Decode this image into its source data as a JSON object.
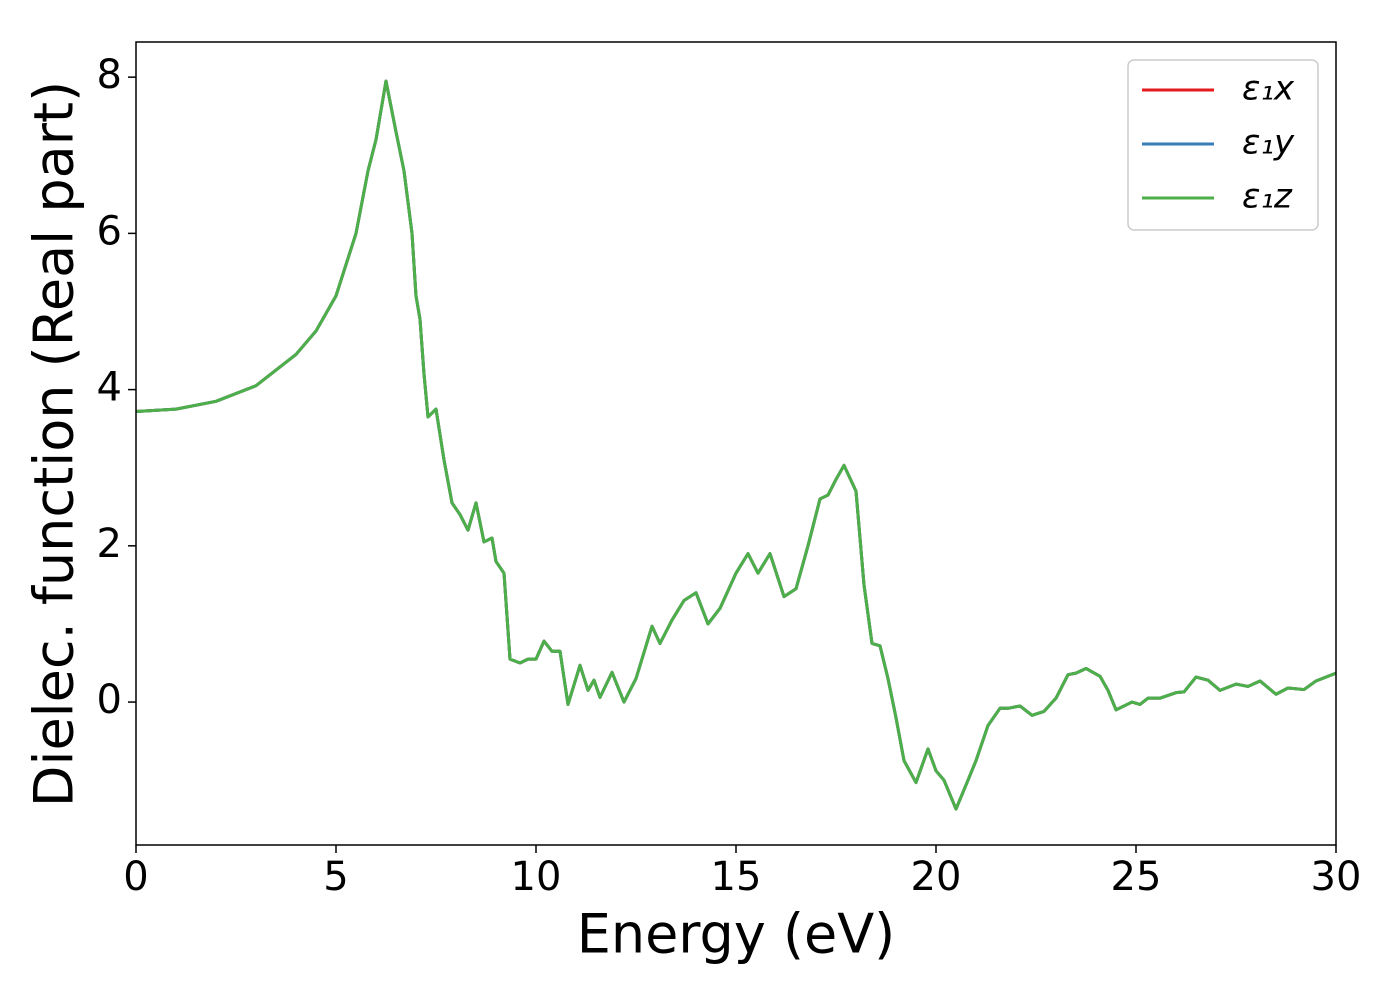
{
  "chart_data": {
    "type": "line",
    "xlabel": "Energy (eV)",
    "ylabel": "Dielec. function (Real part)",
    "x": [
      0,
      1,
      2,
      3,
      4,
      4.5,
      5,
      5.5,
      5.8,
      6.0,
      6.25,
      6.5,
      6.7,
      6.9,
      7.0,
      7.1,
      7.2,
      7.3,
      7.5,
      7.7,
      7.9,
      8.1,
      8.3,
      8.5,
      8.7,
      8.9,
      9.0,
      9.2,
      9.35,
      9.6,
      9.8,
      10.0,
      10.2,
      10.4,
      10.6,
      10.8,
      11.1,
      11.3,
      11.45,
      11.6,
      11.9,
      12.2,
      12.5,
      12.9,
      13.1,
      13.4,
      13.7,
      14.0,
      14.3,
      14.6,
      15.0,
      15.3,
      15.55,
      15.85,
      16.2,
      16.5,
      16.8,
      17.1,
      17.3,
      17.5,
      17.7,
      18.0,
      18.2,
      18.4,
      18.6,
      18.8,
      19.0,
      19.2,
      19.5,
      19.8,
      20.0,
      20.2,
      20.5,
      20.8,
      21.0,
      21.3,
      21.6,
      21.8,
      22.1,
      22.4,
      22.7,
      23.0,
      23.3,
      23.5,
      23.75,
      24.1,
      24.3,
      24.5,
      24.9,
      25.1,
      25.3,
      25.6,
      26.0,
      26.2,
      26.5,
      26.8,
      27.1,
      27.5,
      27.8,
      28.1,
      28.5,
      28.8,
      29.2,
      29.5,
      30.0
    ],
    "series": [
      {
        "name": "ε₁x",
        "color": "#e41a1c",
        "values": [
          3.72,
          3.75,
          3.85,
          4.05,
          4.45,
          4.75,
          5.2,
          6.0,
          6.8,
          7.2,
          7.95,
          7.3,
          6.8,
          6.0,
          5.2,
          4.9,
          4.2,
          3.65,
          3.75,
          3.1,
          2.55,
          2.4,
          2.2,
          2.55,
          2.05,
          2.1,
          1.8,
          1.65,
          0.55,
          0.5,
          0.55,
          0.55,
          0.78,
          0.65,
          0.65,
          -0.03,
          0.47,
          0.15,
          0.28,
          0.06,
          0.38,
          0.0,
          0.3,
          0.97,
          0.75,
          1.05,
          1.3,
          1.4,
          1.0,
          1.2,
          1.65,
          1.9,
          1.65,
          1.9,
          1.35,
          1.45,
          2.0,
          2.6,
          2.65,
          2.85,
          3.03,
          2.7,
          1.5,
          0.75,
          0.72,
          0.3,
          -0.2,
          -0.75,
          -1.03,
          -0.6,
          -0.88,
          -1.0,
          -1.37,
          -1.0,
          -0.75,
          -0.3,
          -0.08,
          -0.08,
          -0.05,
          -0.17,
          -0.12,
          0.05,
          0.35,
          0.37,
          0.43,
          0.33,
          0.15,
          -0.1,
          0.0,
          -0.03,
          0.05,
          0.05,
          0.12,
          0.13,
          0.32,
          0.28,
          0.15,
          0.23,
          0.2,
          0.27,
          0.1,
          0.18,
          0.16,
          0.27,
          0.37
        ]
      },
      {
        "name": "ε₁y",
        "color": "#377eb8",
        "values": [
          3.72,
          3.75,
          3.85,
          4.05,
          4.45,
          4.75,
          5.2,
          6.0,
          6.8,
          7.2,
          7.95,
          7.3,
          6.8,
          6.0,
          5.2,
          4.9,
          4.2,
          3.65,
          3.75,
          3.1,
          2.55,
          2.4,
          2.2,
          2.55,
          2.05,
          2.1,
          1.8,
          1.65,
          0.55,
          0.5,
          0.55,
          0.55,
          0.78,
          0.65,
          0.65,
          -0.03,
          0.47,
          0.15,
          0.28,
          0.06,
          0.38,
          0.0,
          0.3,
          0.97,
          0.75,
          1.05,
          1.3,
          1.4,
          1.0,
          1.2,
          1.65,
          1.9,
          1.65,
          1.9,
          1.35,
          1.45,
          2.0,
          2.6,
          2.65,
          2.85,
          3.03,
          2.7,
          1.5,
          0.75,
          0.72,
          0.3,
          -0.2,
          -0.75,
          -1.03,
          -0.6,
          -0.88,
          -1.0,
          -1.37,
          -1.0,
          -0.75,
          -0.3,
          -0.08,
          -0.08,
          -0.05,
          -0.17,
          -0.12,
          0.05,
          0.35,
          0.37,
          0.43,
          0.33,
          0.15,
          -0.1,
          0.0,
          -0.03,
          0.05,
          0.05,
          0.12,
          0.13,
          0.32,
          0.28,
          0.15,
          0.23,
          0.2,
          0.27,
          0.1,
          0.18,
          0.16,
          0.27,
          0.37
        ]
      },
      {
        "name": "ε₁z",
        "color": "#4daf4a",
        "values": [
          3.72,
          3.75,
          3.85,
          4.05,
          4.45,
          4.75,
          5.2,
          6.0,
          6.8,
          7.2,
          7.95,
          7.3,
          6.8,
          6.0,
          5.2,
          4.9,
          4.2,
          3.65,
          3.75,
          3.1,
          2.55,
          2.4,
          2.2,
          2.55,
          2.05,
          2.1,
          1.8,
          1.65,
          0.55,
          0.5,
          0.55,
          0.55,
          0.78,
          0.65,
          0.65,
          -0.03,
          0.47,
          0.15,
          0.28,
          0.06,
          0.38,
          0.0,
          0.3,
          0.97,
          0.75,
          1.05,
          1.3,
          1.4,
          1.0,
          1.2,
          1.65,
          1.9,
          1.65,
          1.9,
          1.35,
          1.45,
          2.0,
          2.6,
          2.65,
          2.85,
          3.03,
          2.7,
          1.5,
          0.75,
          0.72,
          0.3,
          -0.2,
          -0.75,
          -1.03,
          -0.6,
          -0.88,
          -1.0,
          -1.37,
          -1.0,
          -0.75,
          -0.3,
          -0.08,
          -0.08,
          -0.05,
          -0.17,
          -0.12,
          0.05,
          0.35,
          0.37,
          0.43,
          0.33,
          0.15,
          -0.1,
          0.0,
          -0.03,
          0.05,
          0.05,
          0.12,
          0.13,
          0.32,
          0.28,
          0.15,
          0.23,
          0.2,
          0.27,
          0.1,
          0.18,
          0.16,
          0.27,
          0.37
        ]
      }
    ],
    "xlim": [
      0,
      30
    ],
    "xticks": [
      0,
      5,
      10,
      15,
      20,
      25,
      30
    ],
    "ylim": [
      -1.83,
      8.45
    ],
    "yticks": [
      0,
      2,
      4,
      6,
      8
    ],
    "grid": false,
    "legend": "upper right"
  }
}
